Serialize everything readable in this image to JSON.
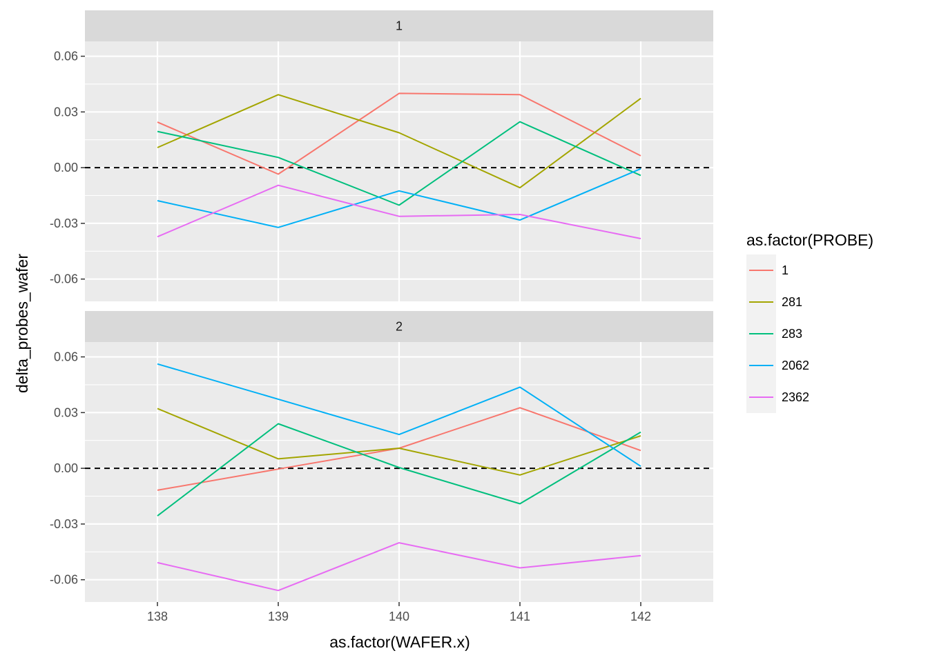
{
  "chart_data": {
    "type": "line",
    "xlabel": "as.factor(WAFER.x)",
    "ylabel": "delta_probes_wafer",
    "categories": [
      "138",
      "139",
      "140",
      "141",
      "142"
    ],
    "ylim": [
      -0.072,
      0.068
    ],
    "y_ticks": [
      {
        "value": 0.06,
        "label": "0.06"
      },
      {
        "value": 0.03,
        "label": "0.03"
      },
      {
        "value": 0.0,
        "label": "0.00"
      },
      {
        "value": -0.03,
        "label": "-0.03"
      },
      {
        "value": -0.06,
        "label": "-0.06"
      }
    ],
    "reference_line": {
      "y": 0.0,
      "style": "dashed",
      "color": "#000000"
    },
    "grid": true,
    "legend": {
      "title": "as.factor(PROBE)",
      "placement": "right",
      "entries": [
        {
          "name": "1",
          "color": "#F8766D"
        },
        {
          "name": "281",
          "color": "#A3A500"
        },
        {
          "name": "283",
          "color": "#00BF7D"
        },
        {
          "name": "2062",
          "color": "#00B0F6"
        },
        {
          "name": "2362",
          "color": "#E76BF3"
        }
      ]
    },
    "facets": [
      {
        "label": "1",
        "series": [
          {
            "name": "1",
            "values": [
              0.0245,
              -0.0035,
              0.04,
              0.0393,
              0.0064
            ]
          },
          {
            "name": "281",
            "values": [
              0.0108,
              0.0393,
              0.0188,
              -0.0108,
              0.0373
            ]
          },
          {
            "name": "283",
            "values": [
              0.0195,
              0.0055,
              -0.0202,
              0.0247,
              -0.0042
            ]
          },
          {
            "name": "2062",
            "values": [
              -0.0178,
              -0.0322,
              -0.0125,
              -0.0282,
              -0.0006
            ]
          },
          {
            "name": "2362",
            "values": [
              -0.0372,
              -0.0095,
              -0.0262,
              -0.0252,
              -0.0382
            ]
          }
        ]
      },
      {
        "label": "2",
        "series": [
          {
            "name": "1",
            "values": [
              -0.0118,
              -0.0004,
              0.0108,
              0.0326,
              0.0096
            ]
          },
          {
            "name": "281",
            "values": [
              0.0322,
              0.0051,
              0.0108,
              -0.0036,
              0.0175
            ]
          },
          {
            "name": "283",
            "values": [
              -0.0256,
              0.024,
              0.0004,
              -0.0191,
              0.0195
            ]
          },
          {
            "name": "2062",
            "values": [
              0.0562,
              0.0372,
              0.0182,
              0.0437,
              0.0011
            ]
          },
          {
            "name": "2362",
            "values": [
              -0.0508,
              -0.0658,
              -0.0401,
              -0.0536,
              -0.047
            ]
          }
        ]
      }
    ]
  }
}
